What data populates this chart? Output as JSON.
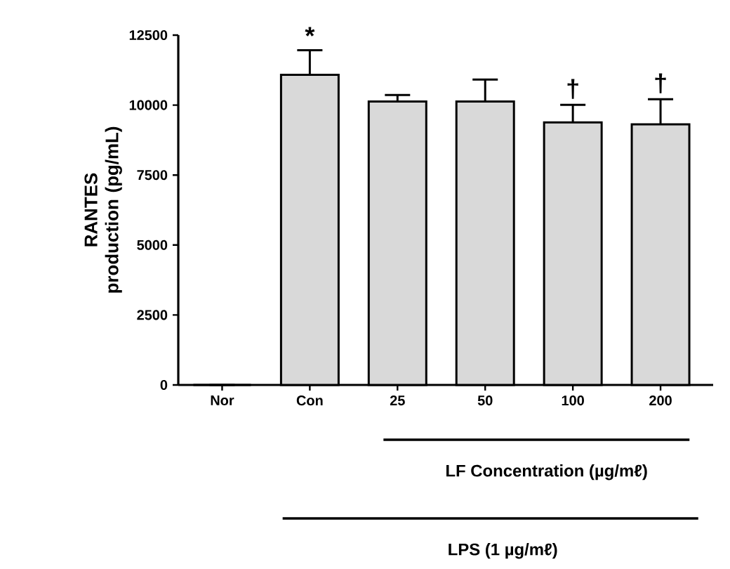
{
  "chart_data": {
    "type": "bar",
    "ylabel": "RANTES production (pg/mL)",
    "categories": [
      "Nor",
      "Con",
      "25",
      "50",
      "100",
      "200"
    ],
    "values": [
      0,
      11080,
      10130,
      10130,
      9380,
      9310
    ],
    "errors": [
      null,
      880,
      230,
      780,
      630,
      900
    ],
    "color": "#d9d9d9",
    "ylim": [
      0,
      12500
    ],
    "yticks": [
      0,
      2500,
      5000,
      7500,
      10000,
      12500
    ],
    "grid": false,
    "annotations": [
      {
        "text": "*",
        "x": "Con",
        "y": 11960
      },
      {
        "text": "†",
        "x": "100",
        "y": 10010
      },
      {
        "text": "†",
        "x": "200",
        "y": 10210
      },
      "LF Concentration (µg/mℓ)",
      "LPS (1 µg/mℓ)"
    ]
  }
}
